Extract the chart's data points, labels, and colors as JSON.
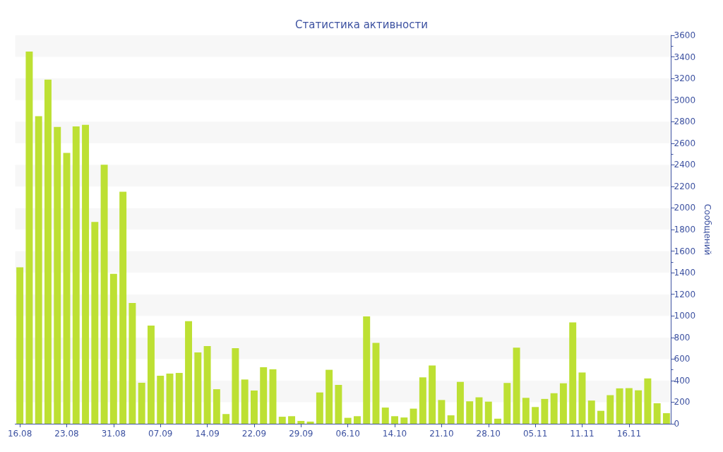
{
  "chart_data": {
    "type": "bar",
    "title": "Статистика активности",
    "ylabel": "Сообщений",
    "categories": [
      "16.08",
      null,
      null,
      null,
      null,
      "23.08",
      null,
      null,
      null,
      null,
      "31.08",
      null,
      null,
      null,
      null,
      "07.09",
      null,
      null,
      null,
      null,
      "14.09",
      null,
      null,
      null,
      null,
      "22.09",
      null,
      null,
      null,
      null,
      "29.09",
      null,
      null,
      null,
      null,
      "06.10",
      null,
      null,
      null,
      null,
      "14.10",
      null,
      null,
      null,
      null,
      "21.10",
      null,
      null,
      null,
      null,
      "28.10",
      null,
      null,
      null,
      null,
      "05.11",
      null,
      null,
      null,
      null,
      "11.11",
      null,
      null,
      null,
      null,
      "16.11",
      null,
      null,
      null,
      null
    ],
    "series": [
      {
        "color": "#bde033",
        "values": [
          1450,
          3450,
          2850,
          3190,
          2750,
          2510,
          2755,
          2770,
          1870,
          2400,
          1390,
          2150,
          1120,
          380,
          910,
          445,
          465,
          471,
          950,
          661,
          720,
          320,
          90,
          700,
          410,
          308,
          524,
          505,
          65,
          70,
          26,
          20,
          290,
          500,
          360,
          55,
          70,
          995,
          750,
          150,
          70,
          58,
          140,
          430,
          540,
          220,
          78,
          388,
          208,
          245,
          205,
          47,
          378,
          705,
          240,
          155,
          230,
          283,
          375,
          940,
          475,
          215,
          120,
          265,
          328,
          330,
          310,
          420,
          190,
          98
        ]
      }
    ],
    "ylim": [
      0,
      3600
    ],
    "yticks": [
      0,
      200,
      400,
      600,
      800,
      1000,
      1200,
      1400,
      1600,
      1800,
      2000,
      2200,
      2400,
      2600,
      2800,
      3000,
      3200,
      3400,
      3600
    ],
    "grid": false
  }
}
